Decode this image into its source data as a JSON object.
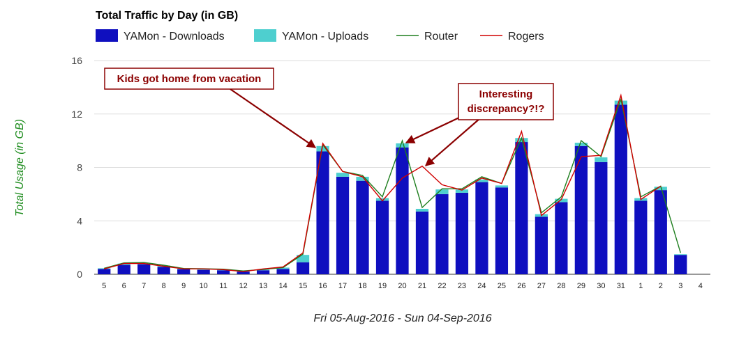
{
  "chart_data": {
    "type": "bar",
    "title": "Total Traffic by Day (in GB)",
    "ylabel": "Total Usage (in GB)",
    "xlabel": "Fri 05-Aug-2016 - Sun 04-Sep-2016",
    "ylim": [
      0,
      16
    ],
    "yticks": [
      0,
      4,
      8,
      12,
      16
    ],
    "grid": true,
    "legend_position": "top",
    "categories": [
      "5",
      "6",
      "7",
      "8",
      "9",
      "10",
      "11",
      "12",
      "13",
      "14",
      "15",
      "16",
      "17",
      "18",
      "19",
      "20",
      "21",
      "22",
      "23",
      "24",
      "25",
      "26",
      "27",
      "28",
      "29",
      "30",
      "31",
      "1",
      "2",
      "3",
      "4"
    ],
    "series": [
      {
        "name": "YAMon - Downloads",
        "kind": "bar",
        "color": "#0f0fbf",
        "values": [
          0.4,
          0.7,
          0.75,
          0.55,
          0.38,
          0.33,
          0.3,
          0.2,
          0.3,
          0.4,
          0.9,
          9.2,
          7.3,
          7.0,
          5.5,
          9.5,
          4.7,
          6.0,
          6.1,
          6.9,
          6.5,
          9.9,
          4.3,
          5.4,
          9.6,
          8.4,
          12.7,
          5.5,
          6.3,
          1.45,
          0
        ]
      },
      {
        "name": "YAMon - Uploads",
        "kind": "bar",
        "color": "#4ecfcf",
        "values": [
          0.05,
          0.1,
          0.1,
          0.1,
          0.05,
          0.07,
          0.06,
          0.05,
          0.05,
          0.1,
          0.55,
          0.4,
          0.3,
          0.3,
          0.2,
          0.3,
          0.2,
          0.35,
          0.25,
          0.2,
          0.15,
          0.3,
          0.2,
          0.25,
          0.25,
          0.35,
          0.3,
          0.2,
          0.25,
          0.05,
          0
        ]
      },
      {
        "name": "Router",
        "kind": "line",
        "color": "#1e7e1e",
        "values": [
          0.45,
          0.85,
          0.88,
          0.68,
          0.43,
          0.41,
          0.38,
          0.25,
          0.36,
          0.5,
          1.5,
          9.7,
          7.7,
          7.4,
          5.8,
          10.0,
          5.0,
          6.4,
          6.4,
          7.3,
          6.8,
          10.2,
          4.6,
          5.8,
          10.0,
          8.8,
          13.1,
          5.8,
          6.6,
          1.6,
          null
        ]
      },
      {
        "name": "Rogers",
        "kind": "line",
        "color": "#d00000",
        "values": [
          0.4,
          0.8,
          0.8,
          0.6,
          0.4,
          0.4,
          0.35,
          0.2,
          0.4,
          0.55,
          1.6,
          9.8,
          7.7,
          7.3,
          5.5,
          7.2,
          8.1,
          6.7,
          6.3,
          7.2,
          6.8,
          10.7,
          4.4,
          5.6,
          8.8,
          8.9,
          13.4,
          5.6,
          6.6,
          null,
          null
        ]
      }
    ],
    "annotations": [
      {
        "lines": [
          "Kids got home from vacation"
        ],
        "color": "#8b0000"
      },
      {
        "lines": [
          "Interesting",
          "discrepancy?!?"
        ],
        "color": "#8b0000"
      }
    ]
  }
}
